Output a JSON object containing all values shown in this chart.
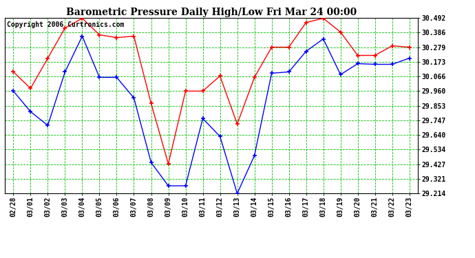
{
  "title": "Barometric Pressure Daily High/Low Fri Mar 24 00:00",
  "copyright": "Copyright 2006 Curtronics.com",
  "labels": [
    "02/28",
    "03/01",
    "03/02",
    "03/03",
    "03/04",
    "03/05",
    "03/06",
    "03/07",
    "03/08",
    "03/09",
    "03/10",
    "03/11",
    "03/12",
    "03/13",
    "03/14",
    "03/15",
    "03/16",
    "03/17",
    "03/18",
    "03/19",
    "03/20",
    "03/21",
    "03/22",
    "03/23"
  ],
  "high_values": [
    30.1,
    29.98,
    30.2,
    30.42,
    30.49,
    30.37,
    30.35,
    30.36,
    29.87,
    29.43,
    29.96,
    29.96,
    30.07,
    29.72,
    30.06,
    30.28,
    30.28,
    30.46,
    30.49,
    30.39,
    30.22,
    30.22,
    30.29,
    30.28
  ],
  "low_values": [
    29.96,
    29.81,
    29.71,
    30.1,
    30.36,
    30.06,
    30.06,
    29.91,
    29.44,
    29.27,
    29.27,
    29.76,
    29.63,
    29.214,
    29.49,
    30.09,
    30.1,
    30.25,
    30.34,
    30.08,
    30.16,
    30.155,
    30.155,
    30.2
  ],
  "high_color": "#ff0000",
  "low_color": "#0000ff",
  "grid_color": "#00bb00",
  "bg_color": "#ffffff",
  "plot_bg": "#ffffff",
  "ylim_min": 29.214,
  "ylim_max": 30.492,
  "yticks": [
    29.214,
    29.321,
    29.427,
    29.534,
    29.64,
    29.747,
    29.853,
    29.96,
    30.066,
    30.173,
    30.279,
    30.386,
    30.492
  ],
  "title_fontsize": 10,
  "tick_fontsize": 7,
  "copyright_fontsize": 7,
  "marker_size": 4,
  "linewidth": 1.0
}
